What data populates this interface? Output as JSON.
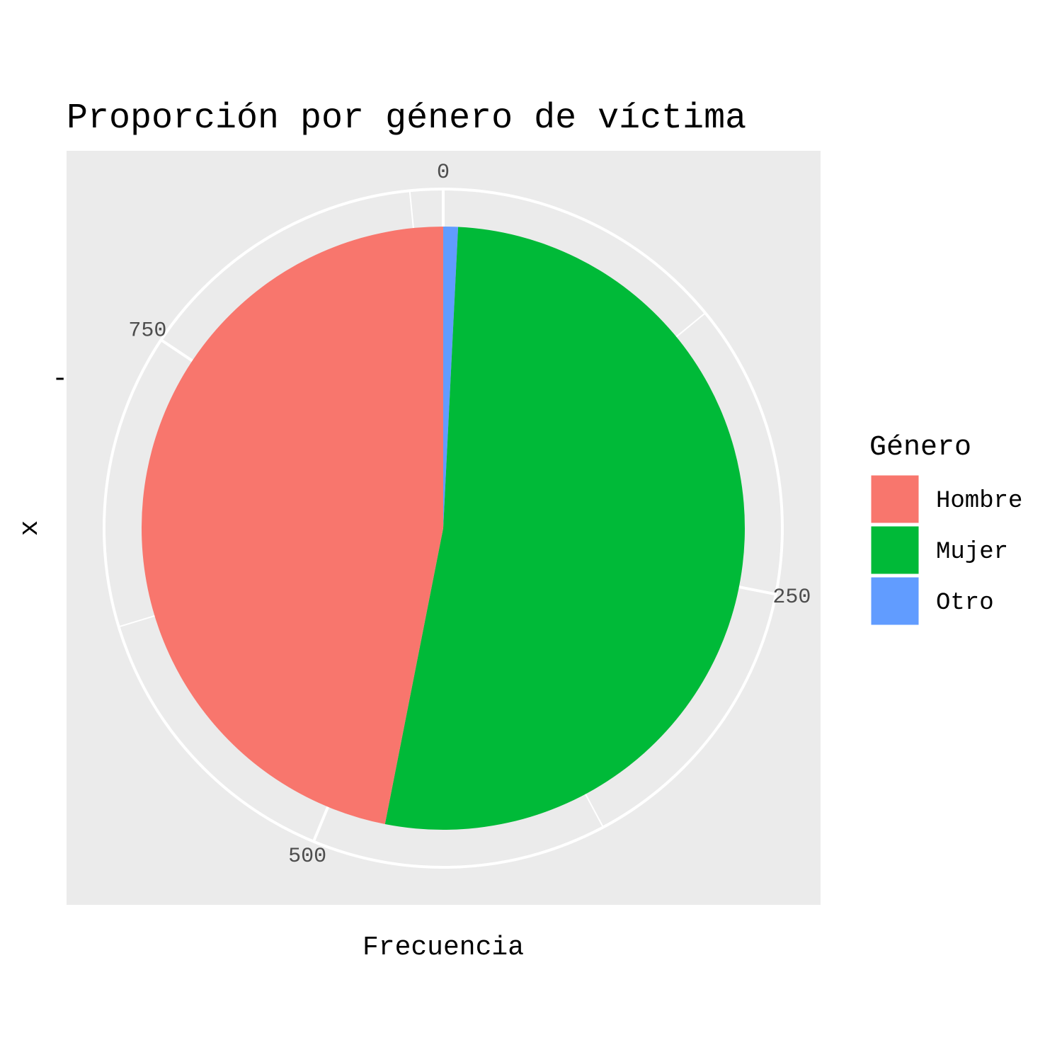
{
  "chart_data": {
    "type": "pie",
    "title": "Proporción por género de víctima",
    "xlabel": "Frecuencia",
    "ylabel": "x",
    "y_tick_label": "-",
    "total": 889,
    "slices": [
      {
        "label": "Mujer",
        "value": 465
      },
      {
        "label": "Hombre",
        "value": 417
      },
      {
        "label": "Otro",
        "value": 7
      }
    ],
    "stack_order": [
      "Otro",
      "Mujer",
      "Hombre"
    ],
    "radial_ticks": [
      0,
      250,
      500,
      750
    ],
    "legend": {
      "title": "Género",
      "entries": [
        "Hombre",
        "Mujer",
        "Otro"
      ],
      "position": "right"
    },
    "colors": {
      "Hombre": "#F8766D",
      "Mujer": "#00BA38",
      "Otro": "#619CFF",
      "panel": "#EBEBEB",
      "grid": "#FFFFFF"
    }
  }
}
